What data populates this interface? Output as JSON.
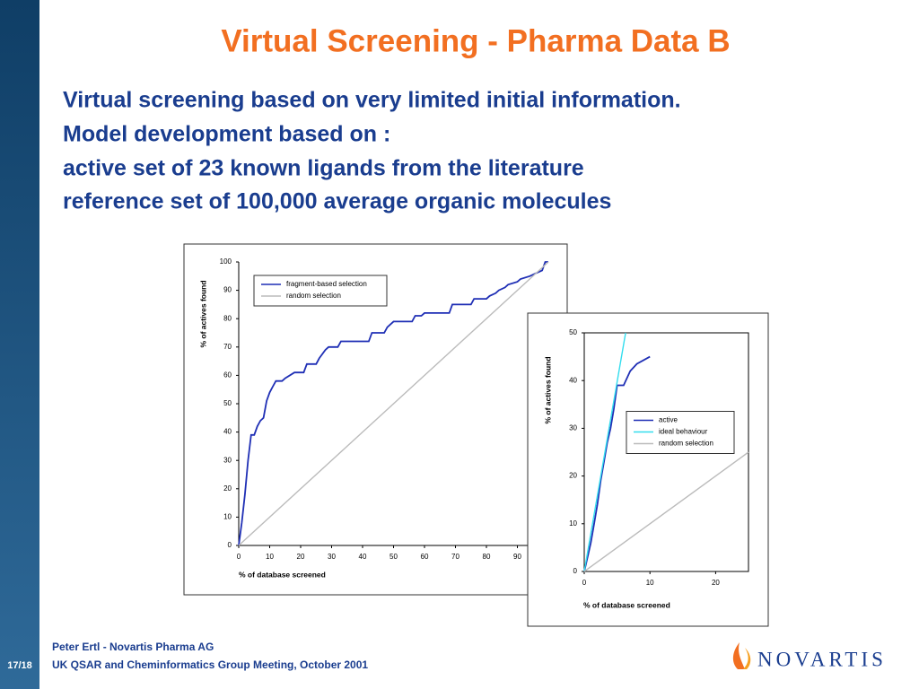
{
  "slide": {
    "title": "Virtual Screening - Pharma Data B",
    "body": [
      "Virtual screening based on very limited initial information.",
      "Model development based on :",
      "active set of 23 known ligands from the literature",
      "reference set of 100,000 average organic molecules"
    ],
    "footer": [
      "Peter Ertl - Novartis Pharma AG",
      "UK QSAR and Cheminformatics Group Meeting, October 2001"
    ],
    "page": "17/18",
    "logo": "NOVARTIS"
  },
  "chart_data": [
    {
      "type": "line",
      "xlabel": "% of database screened",
      "ylabel": "% of actives found",
      "xlim": [
        0,
        100
      ],
      "ylim": [
        0,
        100
      ],
      "xticks": [
        0,
        10,
        20,
        30,
        40,
        50,
        60,
        70,
        80,
        90
      ],
      "yticks": [
        0,
        10,
        20,
        30,
        40,
        50,
        60,
        70,
        80,
        90,
        100
      ],
      "legend": "upper left",
      "series": [
        {
          "name": "fragment-based selection",
          "color": "#1f2fb5",
          "x": [
            0,
            1,
            2,
            3,
            4,
            5,
            6,
            7,
            8,
            9,
            10,
            11,
            12,
            14,
            15,
            18,
            21,
            22,
            25,
            26,
            28,
            29,
            32,
            33,
            42,
            43,
            47,
            48,
            50,
            56,
            57,
            59,
            60,
            68,
            69,
            75,
            76,
            80,
            81,
            83,
            84,
            86,
            87,
            90,
            91,
            94,
            96,
            98,
            99,
            100
          ],
          "values": [
            0,
            8,
            18,
            30,
            39,
            39,
            42,
            44,
            45,
            51,
            54,
            56,
            58,
            58,
            59,
            61,
            61,
            64,
            64,
            66,
            69,
            70,
            70,
            72,
            72,
            75,
            75,
            77,
            79,
            79,
            81,
            81,
            82,
            82,
            85,
            85,
            87,
            87,
            88,
            89,
            90,
            91,
            92,
            93,
            94,
            95,
            96,
            97,
            100,
            100
          ]
        },
        {
          "name": "random selection",
          "color": "#bbbbbb",
          "x": [
            0,
            100
          ],
          "values": [
            0,
            100
          ]
        }
      ]
    },
    {
      "type": "line",
      "xlabel": "% of database screened",
      "ylabel": "% of actives found",
      "xlim": [
        0,
        25
      ],
      "ylim": [
        0,
        50
      ],
      "xticks": [
        0,
        10,
        20
      ],
      "yticks": [
        0,
        10,
        20,
        30,
        40,
        50
      ],
      "legend": "center right",
      "series": [
        {
          "name": "active",
          "color": "#1f2fb5",
          "x": [
            0,
            0.5,
            1,
            1.5,
            2,
            2.5,
            3,
            3.5,
            4,
            4.5,
            5,
            6,
            7,
            8,
            10
          ],
          "values": [
            0,
            3,
            6,
            10,
            14,
            19,
            23,
            27,
            30,
            34,
            39,
            39,
            42,
            43.5,
            45
          ]
        },
        {
          "name": "ideal behaviour",
          "color": "#33ddee",
          "x": [
            0,
            6.3
          ],
          "values": [
            0,
            50
          ]
        },
        {
          "name": "random selection",
          "color": "#bbbbbb",
          "x": [
            0,
            25
          ],
          "values": [
            0,
            25
          ]
        }
      ]
    }
  ]
}
